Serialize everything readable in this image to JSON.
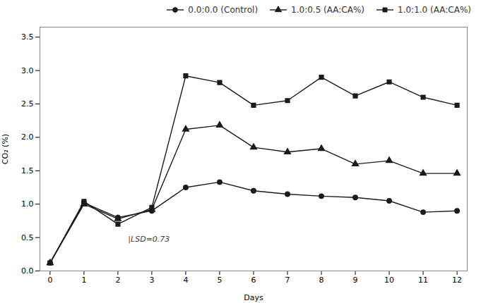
{
  "chart_data": {
    "type": "line",
    "x": [
      0,
      1,
      2,
      3,
      4,
      5,
      6,
      7,
      8,
      9,
      10,
      11,
      12
    ],
    "series": [
      {
        "name": "0.0:0.0 (Control)",
        "color": "#1a1a1a",
        "marker": "circle",
        "values": [
          0.12,
          1.02,
          0.8,
          0.9,
          1.25,
          1.33,
          1.2,
          1.15,
          1.12,
          1.1,
          1.05,
          0.88,
          0.9
        ]
      },
      {
        "name": "1.0:0.5 (AA:CA%)",
        "color": "#1a1a1a",
        "marker": "triangle",
        "values": [
          0.12,
          1.0,
          0.78,
          0.92,
          2.12,
          2.18,
          1.85,
          1.78,
          1.83,
          1.6,
          1.65,
          1.46,
          1.46
        ]
      },
      {
        "name": "1.0:1.0 (AA:CA%)",
        "color": "#1a1a1a",
        "marker": "square",
        "values": [
          0.12,
          1.04,
          0.7,
          0.95,
          2.92,
          2.82,
          2.48,
          2.55,
          2.9,
          2.62,
          2.83,
          2.6,
          2.48
        ]
      }
    ],
    "xlabel": "Days",
    "ylabel": "CO₂ (%)",
    "xlim": [
      -0.3,
      12.3
    ],
    "ylim": [
      0.0,
      3.65
    ],
    "xticks": [
      0,
      1,
      2,
      3,
      4,
      5,
      6,
      7,
      8,
      9,
      10,
      11,
      12
    ],
    "yticks": [
      {
        "value": 0,
        "label": "0.0"
      },
      0.5,
      {
        "value": 1,
        "label": "1.0"
      },
      1.5,
      {
        "value": 2,
        "label": "2.0"
      },
      2.5,
      {
        "value": 3,
        "label": "3.0"
      },
      3.5
    ],
    "annotations": [
      {
        "text": "|LSD=0.73",
        "x": 2.3,
        "y": 0.44
      }
    ],
    "legend": "upper right",
    "grid": false
  }
}
